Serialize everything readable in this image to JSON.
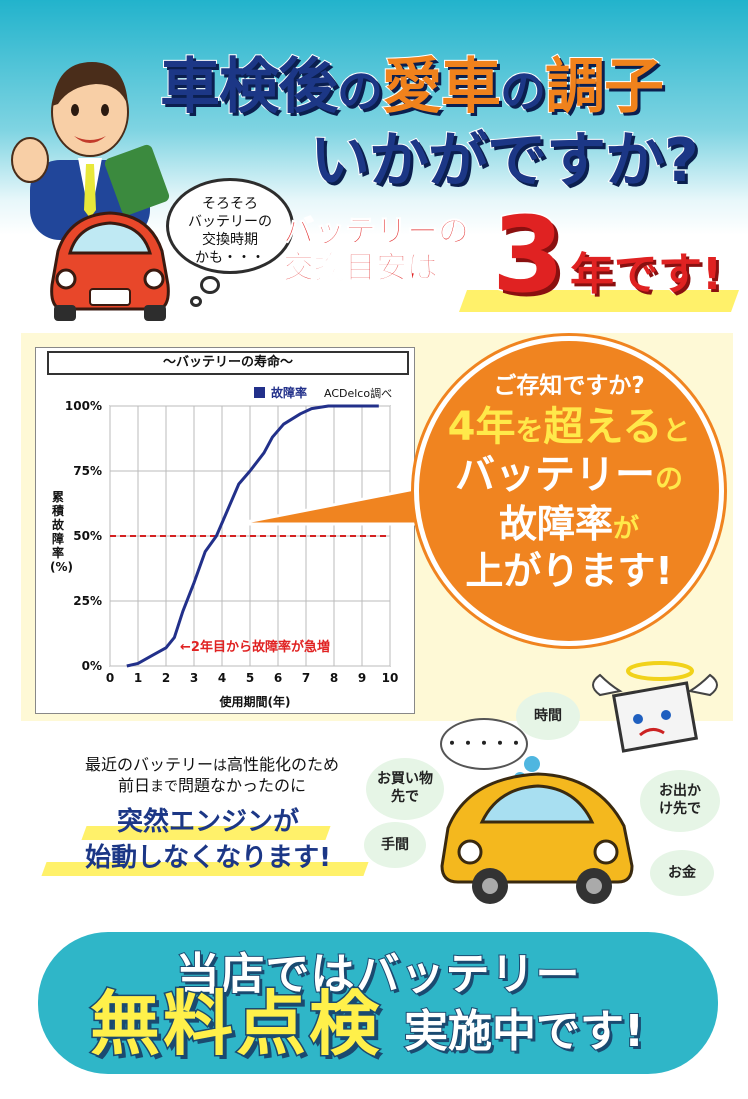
{
  "headline": {
    "line1_navy": "車検後",
    "line1_no1": "の",
    "line1_orange": "愛車",
    "line1_no2": "の",
    "line1_orange2": "調子",
    "line2": "いかがですか?"
  },
  "thought_bubble": {
    "line1": "そろそろ",
    "line2": "バッテリーの",
    "line3": "交換時期",
    "line4": "かも・・・"
  },
  "tagline": {
    "line1": "バッテリーの",
    "line2": "交換目安は",
    "number": "3",
    "suffix": "年です!"
  },
  "chart_data": {
    "type": "line",
    "title": "～バッテリーの寿命～",
    "legend": "故障率",
    "source": "ACDelco調べ",
    "xlabel": "使用期間(年)",
    "ylabel": "累積故障率(%)",
    "x_ticks": [
      "0",
      "1",
      "2",
      "3",
      "4",
      "5",
      "6",
      "7",
      "8",
      "9",
      "10"
    ],
    "y_ticks": [
      "0%",
      "25%",
      "50%",
      "75%",
      "100%"
    ],
    "xlim": [
      0,
      10
    ],
    "ylim": [
      0,
      100
    ],
    "reference_line": 50,
    "annotation": "←2年目から故障率が急増",
    "series": [
      {
        "name": "故障率",
        "color": "#22308a",
        "x": [
          0.6,
          1.0,
          1.5,
          2.0,
          2.3,
          2.6,
          3.0,
          3.4,
          3.8,
          4.2,
          4.6,
          5.0,
          5.5,
          5.8,
          6.2,
          6.8,
          7.2,
          7.8,
          8.5,
          9.0,
          9.6
        ],
        "y": [
          0,
          1,
          4,
          7,
          11,
          21,
          32,
          44,
          50,
          60,
          70,
          75,
          82,
          88,
          93,
          97,
          99,
          100,
          100,
          100,
          100
        ]
      }
    ]
  },
  "callout": {
    "question": "ご存知ですか?",
    "l1_a": "4年",
    "l1_b": "を",
    "l1_c": "超える",
    "l1_d": "と",
    "l2_a": "バッテリー",
    "l2_b": "の",
    "l3_a": "故障率",
    "l3_b": "が",
    "l4": "上がります!"
  },
  "body": {
    "line1_a": "最近のバッテリー",
    "line1_b": "は",
    "line1_c": "高性能化のため",
    "line2_a": "前日",
    "line2_b": "まで",
    "line2_c": "問題なかったのに",
    "emph1": "突然エンジンが",
    "emph2": "始動しなくなります!"
  },
  "worries": {
    "dots": "・・・・・",
    "time": "時間",
    "shopping": "お買い物先で",
    "outing": "お出かけ先で",
    "effort": "手間",
    "money": "お金"
  },
  "bottom": {
    "line1": "当店ではバッテリー",
    "big": "無料点検",
    "tail": "実施中です!"
  },
  "colors": {
    "navy": "#1c3786",
    "orange": "#f08420",
    "red": "#e02222",
    "teal": "#2fb6c8",
    "yellow": "#fff16a"
  }
}
